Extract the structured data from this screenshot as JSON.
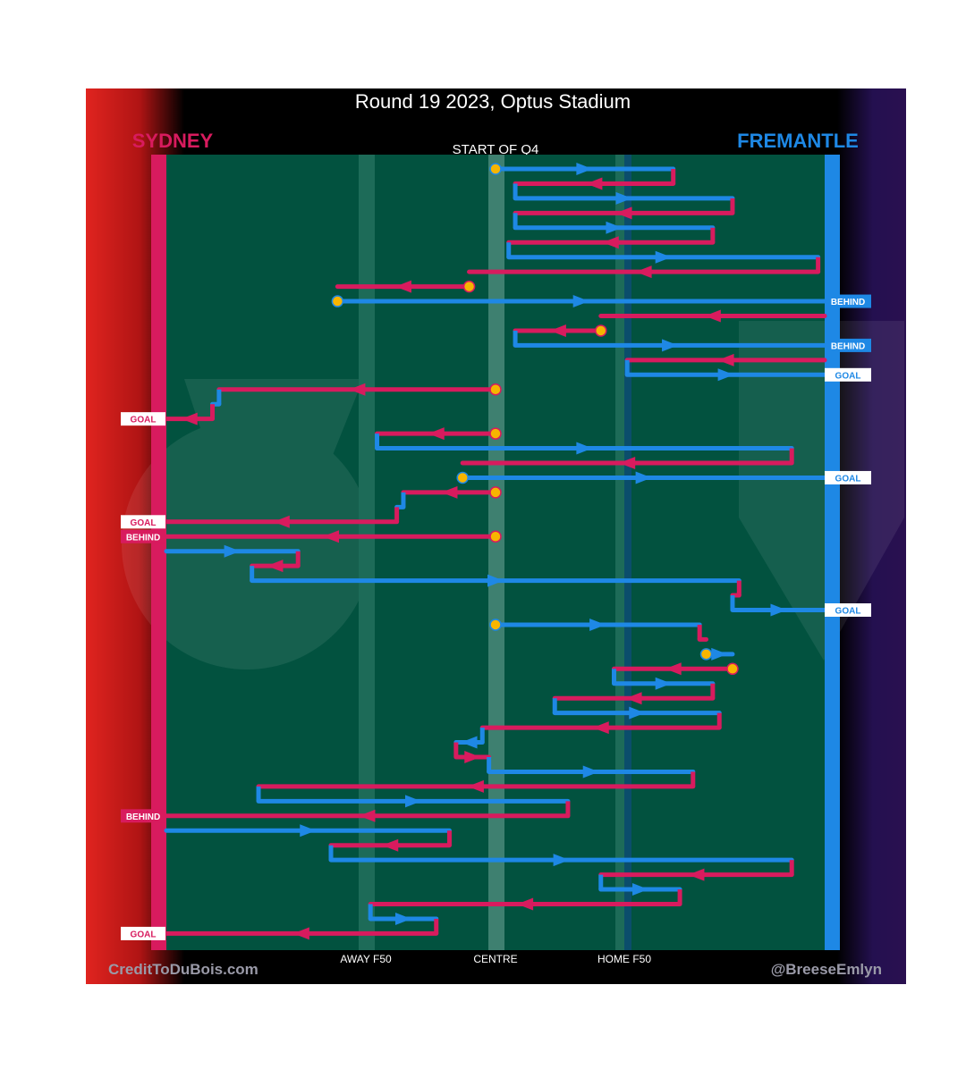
{
  "title": "Round 19 2023, Optus Stadium",
  "period_label": "START OF Q4",
  "teams": {
    "away": {
      "name": "SYDNEY",
      "color": "#d81b5e"
    },
    "home": {
      "name": "FREMANTLE",
      "color": "#1e88e5"
    }
  },
  "colors": {
    "ball": "#f7b500",
    "field": "#02523f",
    "field_band": "#1d6b58",
    "home_f50_line": "#0b4d6b"
  },
  "axis": {
    "labels": [
      "AWAY F50",
      "CENTRE",
      "HOME F50"
    ]
  },
  "footer": {
    "left": "CreditToDuBois.com",
    "right": "@BreeseEmlyn"
  },
  "chart_data": {
    "type": "chain-flow",
    "title": "Round 19 2023, Optus Stadium",
    "subtitle": "START OF Q4",
    "x_axis": {
      "range": [
        0,
        100
      ],
      "ticks": [
        {
          "label": "AWAY F50",
          "value": 30
        },
        {
          "label": "CENTRE",
          "value": 50
        },
        {
          "label": "HOME F50",
          "value": 70
        }
      ]
    },
    "legend": [
      "SYDNEY",
      "FREMANTLE"
    ],
    "chains": [
      {
        "segments": [
          {
            "team": "home",
            "from": 50,
            "to": 77
          },
          {
            "team": "away",
            "from": 77,
            "to": 53
          },
          {
            "team": "home",
            "from": 53,
            "to": 86
          },
          {
            "team": "away",
            "from": 86,
            "to": 53
          },
          {
            "team": "home",
            "from": 53,
            "to": 83
          },
          {
            "team": "away",
            "from": 83,
            "to": 52
          },
          {
            "team": "home",
            "from": 52,
            "to": 99
          },
          {
            "team": "away",
            "from": 99,
            "to": 46
          }
        ],
        "start": "center",
        "end": null
      },
      {
        "segments": [
          {
            "team": "away",
            "from": 46,
            "to": 26
          }
        ],
        "start": "stoppage",
        "end": null
      },
      {
        "segments": [
          {
            "team": "home",
            "from": 26,
            "to": 100
          }
        ],
        "start": "stoppage",
        "end": "BEHIND"
      },
      {
        "segments": [
          {
            "team": "away",
            "from": 100,
            "to": 66
          }
        ],
        "start": "kick-in",
        "end": null
      },
      {
        "segments": [
          {
            "team": "away",
            "from": 66,
            "to": 53
          },
          {
            "team": "home",
            "from": 53,
            "to": 100
          }
        ],
        "start": "stoppage",
        "end": "BEHIND"
      },
      {
        "segments": [
          {
            "team": "away",
            "from": 100,
            "to": 70
          },
          {
            "team": "home",
            "from": 70,
            "to": 100
          }
        ],
        "start": "kick-in",
        "end": "GOAL"
      },
      {
        "segments": [
          {
            "team": "away",
            "from": 50,
            "to": 8
          },
          {
            "team": "home",
            "from": 8,
            "to": 7
          },
          {
            "team": "away",
            "from": 7,
            "to": 0
          }
        ],
        "start": "center",
        "end": "GOAL"
      },
      {
        "segments": [
          {
            "team": "away",
            "from": 50,
            "to": 32
          },
          {
            "team": "home",
            "from": 32,
            "to": 95
          },
          {
            "team": "away",
            "from": 95,
            "to": 45
          }
        ],
        "start": "center",
        "end": null
      },
      {
        "segments": [
          {
            "team": "home",
            "from": 45,
            "to": 100
          }
        ],
        "start": "stoppage",
        "end": "GOAL"
      },
      {
        "segments": [
          {
            "team": "away",
            "from": 50,
            "to": 36
          },
          {
            "team": "home",
            "from": 36,
            "to": 35
          },
          {
            "team": "away",
            "from": 35,
            "to": 0
          }
        ],
        "start": "center",
        "end": "GOAL"
      },
      {
        "segments": [
          {
            "team": "away",
            "from": 50,
            "to": 0
          }
        ],
        "start": "center",
        "end": "BEHIND"
      },
      {
        "segments": [
          {
            "team": "home",
            "from": 0,
            "to": 20
          },
          {
            "team": "away",
            "from": 20,
            "to": 13
          },
          {
            "team": "home",
            "from": 13,
            "to": 87
          },
          {
            "team": "away",
            "from": 87,
            "to": 86
          },
          {
            "team": "home",
            "from": 86,
            "to": 100
          }
        ],
        "start": "kick-in",
        "end": "GOAL"
      },
      {
        "segments": [
          {
            "team": "home",
            "from": 50,
            "to": 81
          },
          {
            "team": "away",
            "from": 81,
            "to": 82
          }
        ],
        "start": "center",
        "end": null
      },
      {
        "segments": [
          {
            "team": "home",
            "from": 82,
            "to": 86
          }
        ],
        "start": "stoppage",
        "end": null
      },
      {
        "segments": [
          {
            "team": "away",
            "from": 86,
            "to": 68
          },
          {
            "team": "home",
            "from": 68,
            "to": 83
          },
          {
            "team": "away",
            "from": 83,
            "to": 59
          },
          {
            "team": "home",
            "from": 59,
            "to": 84
          },
          {
            "team": "away",
            "from": 84,
            "to": 48
          },
          {
            "team": "home",
            "from": 48,
            "to": 44
          },
          {
            "team": "away",
            "from": 44,
            "to": 49
          },
          {
            "team": "home",
            "from": 49,
            "to": 80
          },
          {
            "team": "away",
            "from": 80,
            "to": 14
          },
          {
            "team": "home",
            "from": 14,
            "to": 61
          },
          {
            "team": "away",
            "from": 61,
            "to": 0
          }
        ],
        "start": "stoppage",
        "end": "BEHIND"
      },
      {
        "segments": [
          {
            "team": "home",
            "from": 0,
            "to": 43
          },
          {
            "team": "away",
            "from": 43,
            "to": 25
          },
          {
            "team": "home",
            "from": 25,
            "to": 95
          },
          {
            "team": "away",
            "from": 95,
            "to": 66
          },
          {
            "team": "home",
            "from": 66,
            "to": 78
          },
          {
            "team": "away",
            "from": 78,
            "to": 31
          },
          {
            "team": "home",
            "from": 31,
            "to": 41
          },
          {
            "team": "away",
            "from": 41,
            "to": 0
          }
        ],
        "start": "kick-in",
        "end": "GOAL"
      }
    ],
    "events": [
      "BEHIND",
      "BEHIND",
      "GOAL",
      "GOAL",
      "GOAL",
      "GOAL",
      "BEHIND",
      "GOAL",
      "BEHIND",
      "GOAL"
    ]
  }
}
